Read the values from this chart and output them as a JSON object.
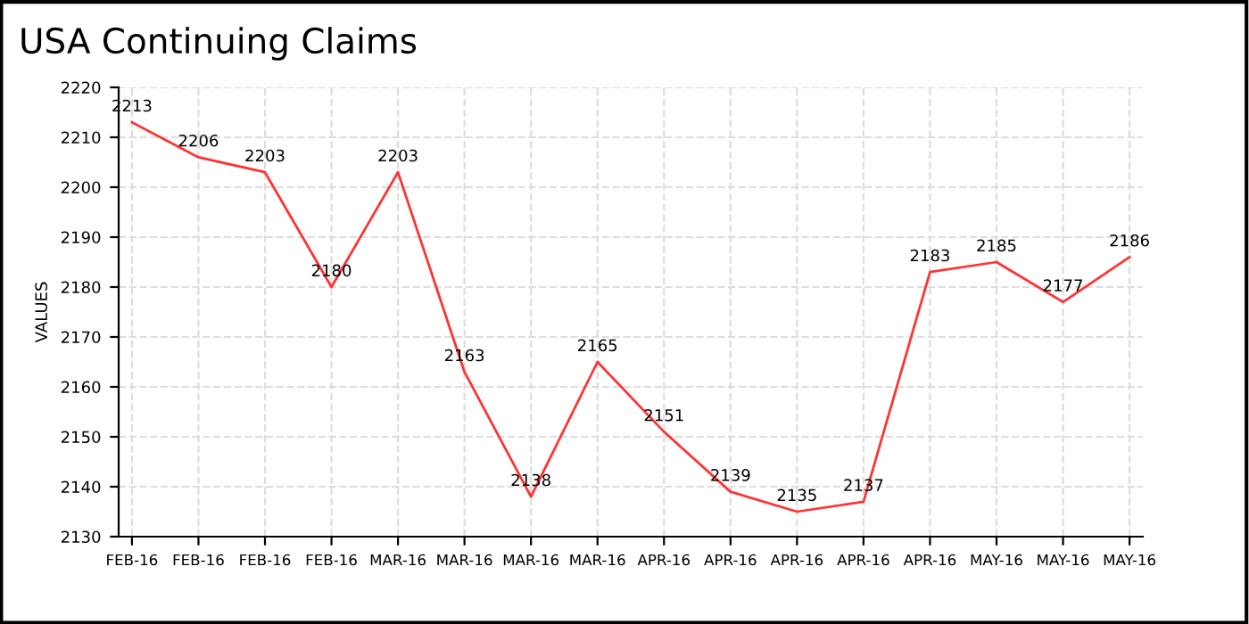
{
  "chart_data": {
    "type": "line",
    "title": "USA Continuing Claims",
    "ylabel": "VALUES",
    "categories": [
      "FEB-16",
      "FEB-16",
      "FEB-16",
      "FEB-16",
      "MAR-16",
      "MAR-16",
      "MAR-16",
      "MAR-16",
      "APR-16",
      "APR-16",
      "APR-16",
      "APR-16",
      "APR-16",
      "MAY-16",
      "MAY-16",
      "MAY-16"
    ],
    "series": [
      {
        "color": "#ff3333",
        "values": [
          2213,
          2206,
          2203,
          2180,
          2203,
          2163,
          2138,
          2165,
          2151,
          2139,
          2135,
          2137,
          2183,
          2185,
          2177,
          2186
        ]
      }
    ],
    "ylim": [
      2130,
      2220
    ],
    "yticks": [
      2130,
      2140,
      2150,
      2160,
      2170,
      2180,
      2190,
      2200,
      2210,
      2220
    ],
    "grid": true,
    "data_labels": true,
    "marker": "none",
    "line_style": "solid"
  }
}
